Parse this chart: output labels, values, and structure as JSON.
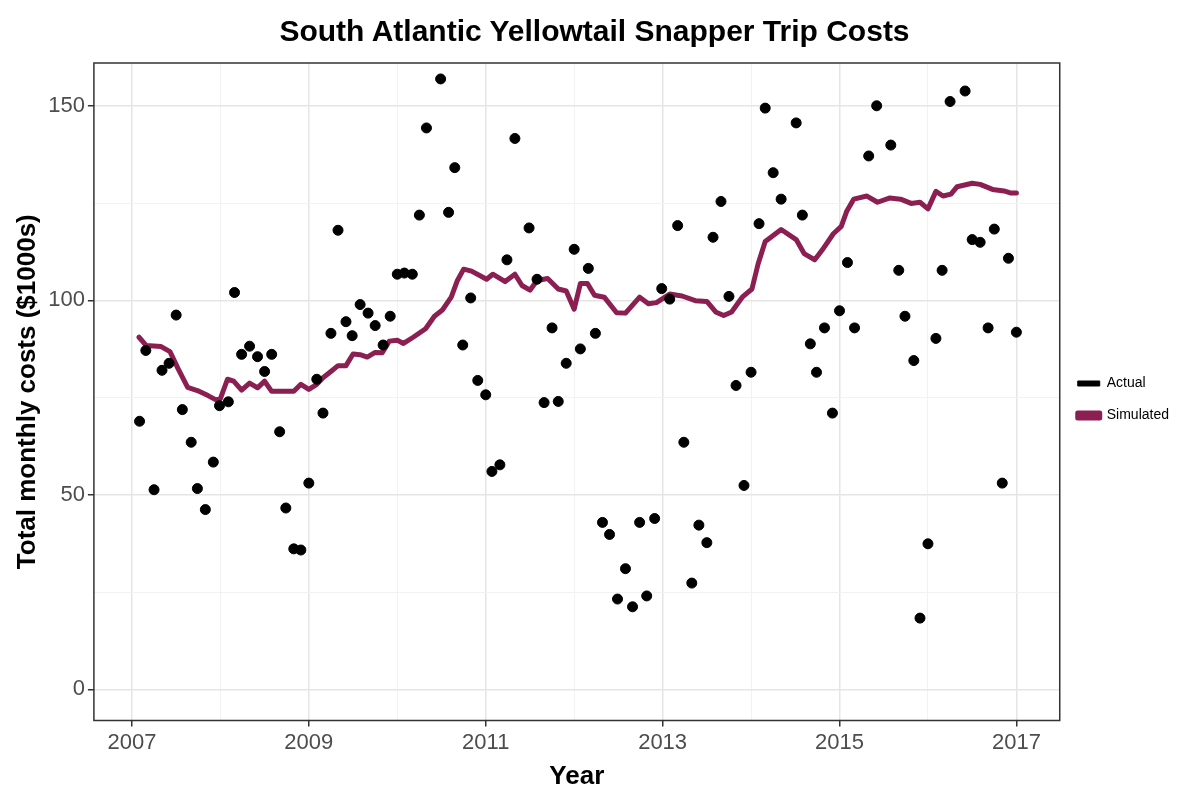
{
  "chart_data": {
    "type": "scatter",
    "title": "South Atlantic Yellowtail Snapper Trip Costs",
    "xlabel": "Year",
    "ylabel": "Total monthly costs ($1000s)",
    "xlim": [
      2006.57,
      2017.49
    ],
    "ylim": [
      -8,
      161
    ],
    "xticks": [
      2007,
      {
        "value": 2008,
        "label": null
      },
      2009,
      {
        "value": 2010,
        "label": null
      },
      2011,
      {
        "value": 2012,
        "label": null
      },
      2013,
      {
        "value": 2014,
        "label": null
      },
      2015,
      {
        "value": 2016,
        "label": null
      },
      2017
    ],
    "yticks": [
      0,
      {
        "value": 25,
        "label": null
      },
      50,
      {
        "value": 75,
        "label": null
      },
      100,
      {
        "value": 125,
        "label": null
      },
      150
    ],
    "grid": true,
    "legend": "right",
    "line_style": "solid",
    "series": [
      {
        "name": "Actual",
        "type": "scatter",
        "marker": "circle",
        "color": "#000000",
        "x": [
          2007.086,
          2007.157,
          2007.25,
          2007.34,
          2007.42,
          2007.5,
          2007.57,
          2007.67,
          2007.74,
          2007.83,
          2007.92,
          2007.99,
          2008.09,
          2008.16,
          2008.24,
          2008.33,
          2008.42,
          2008.5,
          2008.58,
          2008.67,
          2008.74,
          2008.83,
          2008.91,
          2009.0,
          2009.09,
          2009.16,
          2009.25,
          2009.33,
          2009.42,
          2009.49,
          2009.58,
          2009.67,
          2009.75,
          2009.84,
          2009.92,
          2010.0,
          2010.08,
          2010.17,
          2010.25,
          2010.33,
          2010.49,
          2010.58,
          2010.65,
          2010.74,
          2010.83,
          2010.91,
          2011.0,
          2011.07,
          2011.16,
          2011.24,
          2011.33,
          2011.49,
          2011.58,
          2011.66,
          2011.75,
          2011.82,
          2011.91,
          2012.0,
          2012.07,
          2012.16,
          2012.24,
          2012.32,
          2012.4,
          2012.49,
          2012.58,
          2012.66,
          2012.74,
          2012.82,
          2012.91,
          2012.99,
          2013.08,
          2013.17,
          2013.24,
          2013.33,
          2013.41,
          2013.5,
          2013.57,
          2013.66,
          2013.75,
          2013.83,
          2013.92,
          2014.0,
          2014.09,
          2014.16,
          2014.25,
          2014.34,
          2014.51,
          2014.58,
          2014.67,
          2014.74,
          2014.83,
          2014.92,
          2015.0,
          2015.09,
          2015.17,
          2015.33,
          2015.42,
          2015.58,
          2015.67,
          2015.74,
          2015.84,
          2015.91,
          2016.0,
          2016.09,
          2016.16,
          2016.25,
          2016.42,
          2016.5,
          2016.59,
          2016.68,
          2016.75,
          2016.84,
          2016.91,
          2017.0
        ],
        "values": [
          68.9,
          87.1,
          51.3,
          82.0,
          83.8,
          96.2,
          71.9,
          63.5,
          51.6,
          46.2,
          58.4,
          72.9,
          73.9,
          102.0,
          86.1,
          88.2,
          85.5,
          81.7,
          86.1,
          66.2,
          46.6,
          36.1,
          35.8,
          53.0,
          79.7,
          71.0,
          91.5,
          118.0,
          94.5,
          90.9,
          98.9,
          96.7,
          93.5,
          88.5,
          95.9,
          106.7,
          107.0,
          106.7,
          121.9,
          144.3,
          156.9,
          122.6,
          134.1,
          88.5,
          100.6,
          79.4,
          75.7,
          56.0,
          57.7,
          110.4,
          141.6,
          118.6,
          105.4,
          73.7,
          92.9,
          74.0,
          83.8,
          113.1,
          87.5,
          108.2,
          91.5,
          42.9,
          39.8,
          23.2,
          31.0,
          21.2,
          42.9,
          24.0,
          43.9,
          103.0,
          100.3,
          119.2,
          63.5,
          27.3,
          42.2,
          37.7,
          116.2,
          125.4,
          101.0,
          78.1,
          52.4,
          81.5,
          119.7,
          149.4,
          132.8,
          126.0,
          145.6,
          121.9,
          88.8,
          81.5,
          92.9,
          71.0,
          97.3,
          109.7,
          92.9,
          137.1,
          150.0,
          139.9,
          107.7,
          95.9,
          84.5,
          18.3,
          37.4,
          90.2,
          107.7,
          151.1,
          153.8,
          115.6,
          114.9,
          92.9,
          118.3,
          53.0,
          110.8,
          91.8
        ]
      },
      {
        "name": "Simulated",
        "type": "line",
        "marker": "none",
        "color": "#8b1f52",
        "x": [
          2007.08,
          2007.16,
          2007.33,
          2007.43,
          2007.52,
          2007.63,
          2007.74,
          2007.86,
          2007.95,
          2008.0,
          2008.08,
          2008.15,
          2008.24,
          2008.33,
          2008.42,
          2008.5,
          2008.58,
          2008.83,
          2008.91,
          2009.0,
          2009.09,
          2009.16,
          2009.26,
          2009.33,
          2009.42,
          2009.5,
          2009.58,
          2009.66,
          2009.75,
          2009.83,
          2009.91,
          2010.0,
          2010.07,
          2010.18,
          2010.32,
          2010.42,
          2010.51,
          2010.61,
          2010.68,
          2010.75,
          2010.84,
          2011.01,
          2011.08,
          2011.22,
          2011.33,
          2011.41,
          2011.5,
          2011.58,
          2011.7,
          2011.82,
          2011.91,
          2012.0,
          2012.07,
          2012.15,
          2012.23,
          2012.34,
          2012.48,
          2012.58,
          2012.74,
          2012.84,
          2012.93,
          2013.08,
          2013.22,
          2013.37,
          2013.5,
          2013.6,
          2013.69,
          2013.78,
          2013.9,
          2014.01,
          2014.08,
          2014.16,
          2014.34,
          2014.51,
          2014.6,
          2014.72,
          2014.81,
          2014.93,
          2015.02,
          2015.08,
          2015.16,
          2015.31,
          2015.43,
          2015.57,
          2015.69,
          2015.81,
          2015.91,
          2016.0,
          2016.09,
          2016.17,
          2016.26,
          2016.33,
          2016.5,
          2016.59,
          2016.73,
          2016.86,
          2016.93,
          2017.0
        ],
        "values": [
          90.5,
          88.4,
          88.1,
          86.8,
          82.5,
          77.6,
          76.8,
          75.5,
          74.4,
          74.7,
          79.7,
          79.2,
          76.9,
          78.7,
          77.5,
          79.2,
          76.6,
          76.6,
          78.4,
          77.1,
          78.4,
          80.1,
          81.9,
          83.2,
          83.2,
          86.2,
          86.0,
          85.4,
          86.6,
          86.5,
          89.5,
          89.7,
          88.9,
          90.5,
          92.7,
          95.9,
          97.5,
          100.8,
          105.1,
          108.0,
          107.5,
          105.4,
          106.7,
          104.8,
          106.7,
          103.8,
          102.6,
          105.1,
          105.6,
          102.9,
          102.4,
          97.7,
          104.3,
          104.3,
          101.3,
          100.8,
          96.8,
          96.7,
          100.8,
          99.1,
          99.4,
          101.6,
          101.1,
          99.9,
          99.7,
          97.0,
          96.1,
          97.0,
          100.8,
          102.9,
          109.4,
          115.1,
          118.2,
          115.6,
          112.0,
          110.4,
          113.1,
          117.1,
          119.0,
          122.8,
          126.0,
          126.8,
          125.2,
          126.3,
          126.0,
          124.9,
          125.2,
          123.5,
          128.0,
          126.8,
          127.3,
          129.2,
          130.1,
          129.8,
          128.5,
          128.1,
          127.6,
          127.6
        ]
      }
    ]
  }
}
